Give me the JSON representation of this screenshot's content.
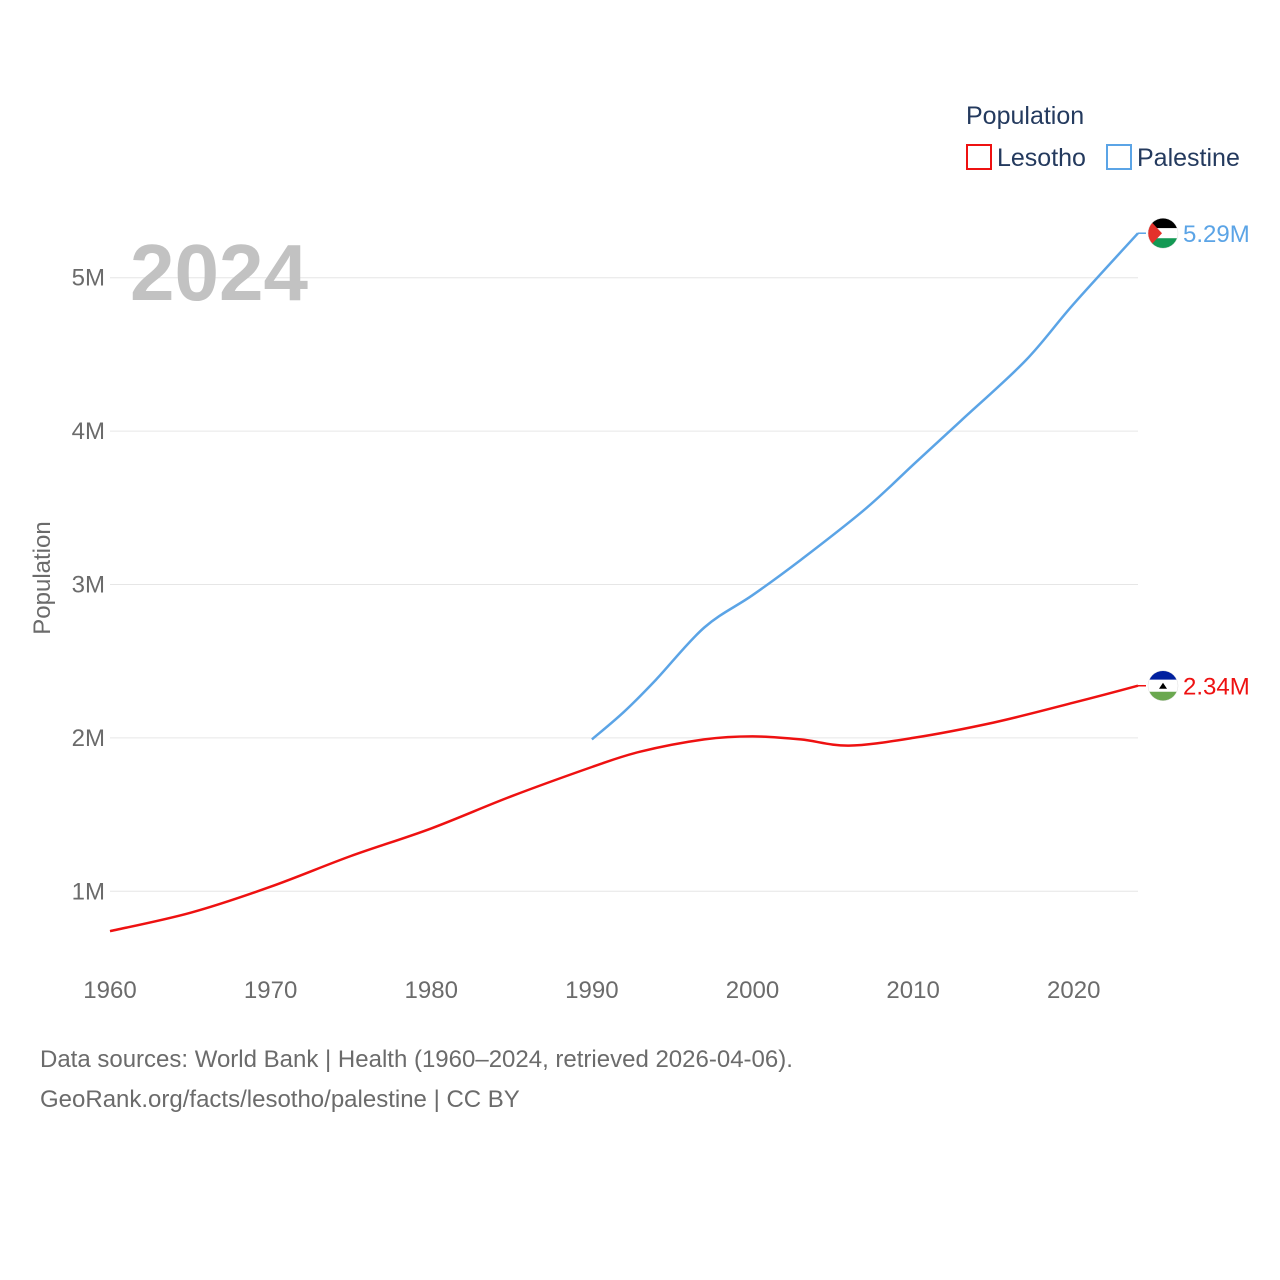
{
  "chart_data": {
    "type": "line",
    "title": "Population",
    "current_year": "2024",
    "xlabel": "",
    "ylabel": "Population",
    "xlim": [
      1960,
      2024
    ],
    "ylim": [
      500000,
      5500000
    ],
    "x_ticks": [
      1960,
      1970,
      1980,
      1990,
      2000,
      2010,
      2020
    ],
    "y_ticks": [
      {
        "value": 1000000,
        "label": "1M"
      },
      {
        "value": 2000000,
        "label": "2M"
      },
      {
        "value": 3000000,
        "label": "3M"
      },
      {
        "value": 4000000,
        "label": "4M"
      },
      {
        "value": 5000000,
        "label": "5M"
      }
    ],
    "grid": true,
    "legend_position": "top-right",
    "series": [
      {
        "name": "Lesotho",
        "color": "#ee1111",
        "end_label": "2.34M",
        "flag": "lesotho-flag",
        "x": [
          1960,
          1965,
          1970,
          1975,
          1980,
          1985,
          1990,
          1993,
          1997,
          2000,
          2003,
          2006,
          2010,
          2015,
          2020,
          2024
        ],
        "values": [
          740000,
          860000,
          1030000,
          1230000,
          1410000,
          1620000,
          1810000,
          1910000,
          1990000,
          2010000,
          1990000,
          1950000,
          2000000,
          2100000,
          2230000,
          2340000
        ]
      },
      {
        "name": "Palestine",
        "color": "#5ba4e6",
        "end_label": "5.29M",
        "flag": "palestine-flag",
        "x": [
          1990,
          1992,
          1994,
          1997,
          2000,
          2003,
          2007,
          2010,
          2013,
          2017,
          2020,
          2024
        ],
        "values": [
          1990000,
          2170000,
          2380000,
          2720000,
          2930000,
          3160000,
          3490000,
          3780000,
          4070000,
          4460000,
          4830000,
          5290000
        ]
      }
    ]
  },
  "source": {
    "line1": "Data sources: World Bank | Health (1960–2024, retrieved 2026-04-06).",
    "line2": "GeoRank.org/facts/lesotho/palestine | CC BY"
  }
}
